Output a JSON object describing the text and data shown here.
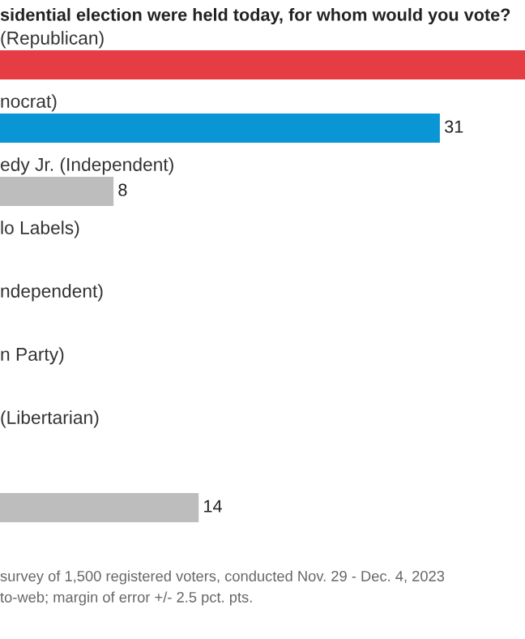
{
  "chart_data": {
    "type": "bar",
    "orientation": "horizontal",
    "title": "sidential election were held today, for whom would you vote?",
    "categories": [
      "(Republican)",
      "nocrat)",
      "edy Jr. (Independent)",
      "lo Labels)",
      "ndependent)",
      "n Party)",
      "(Libertarian)",
      null
    ],
    "values": [
      37,
      31,
      8,
      null,
      null,
      null,
      null,
      14
    ],
    "colors": [
      "#e63c44",
      "#0a95d5",
      "#bdbdbd",
      "#bdbdbd",
      "#bdbdbd",
      "#bdbdbd",
      "#bdbdbd",
      "#bdbdbd"
    ],
    "value_labels": [
      null,
      "31",
      "8",
      null,
      null,
      null,
      null,
      "14"
    ],
    "annotations": [
      "survey of 1,500 registered voters, conducted Nov. 29 - Dec. 4, 2023",
      "to-web; margin of error +/- 2.5 pct. pts."
    ]
  }
}
